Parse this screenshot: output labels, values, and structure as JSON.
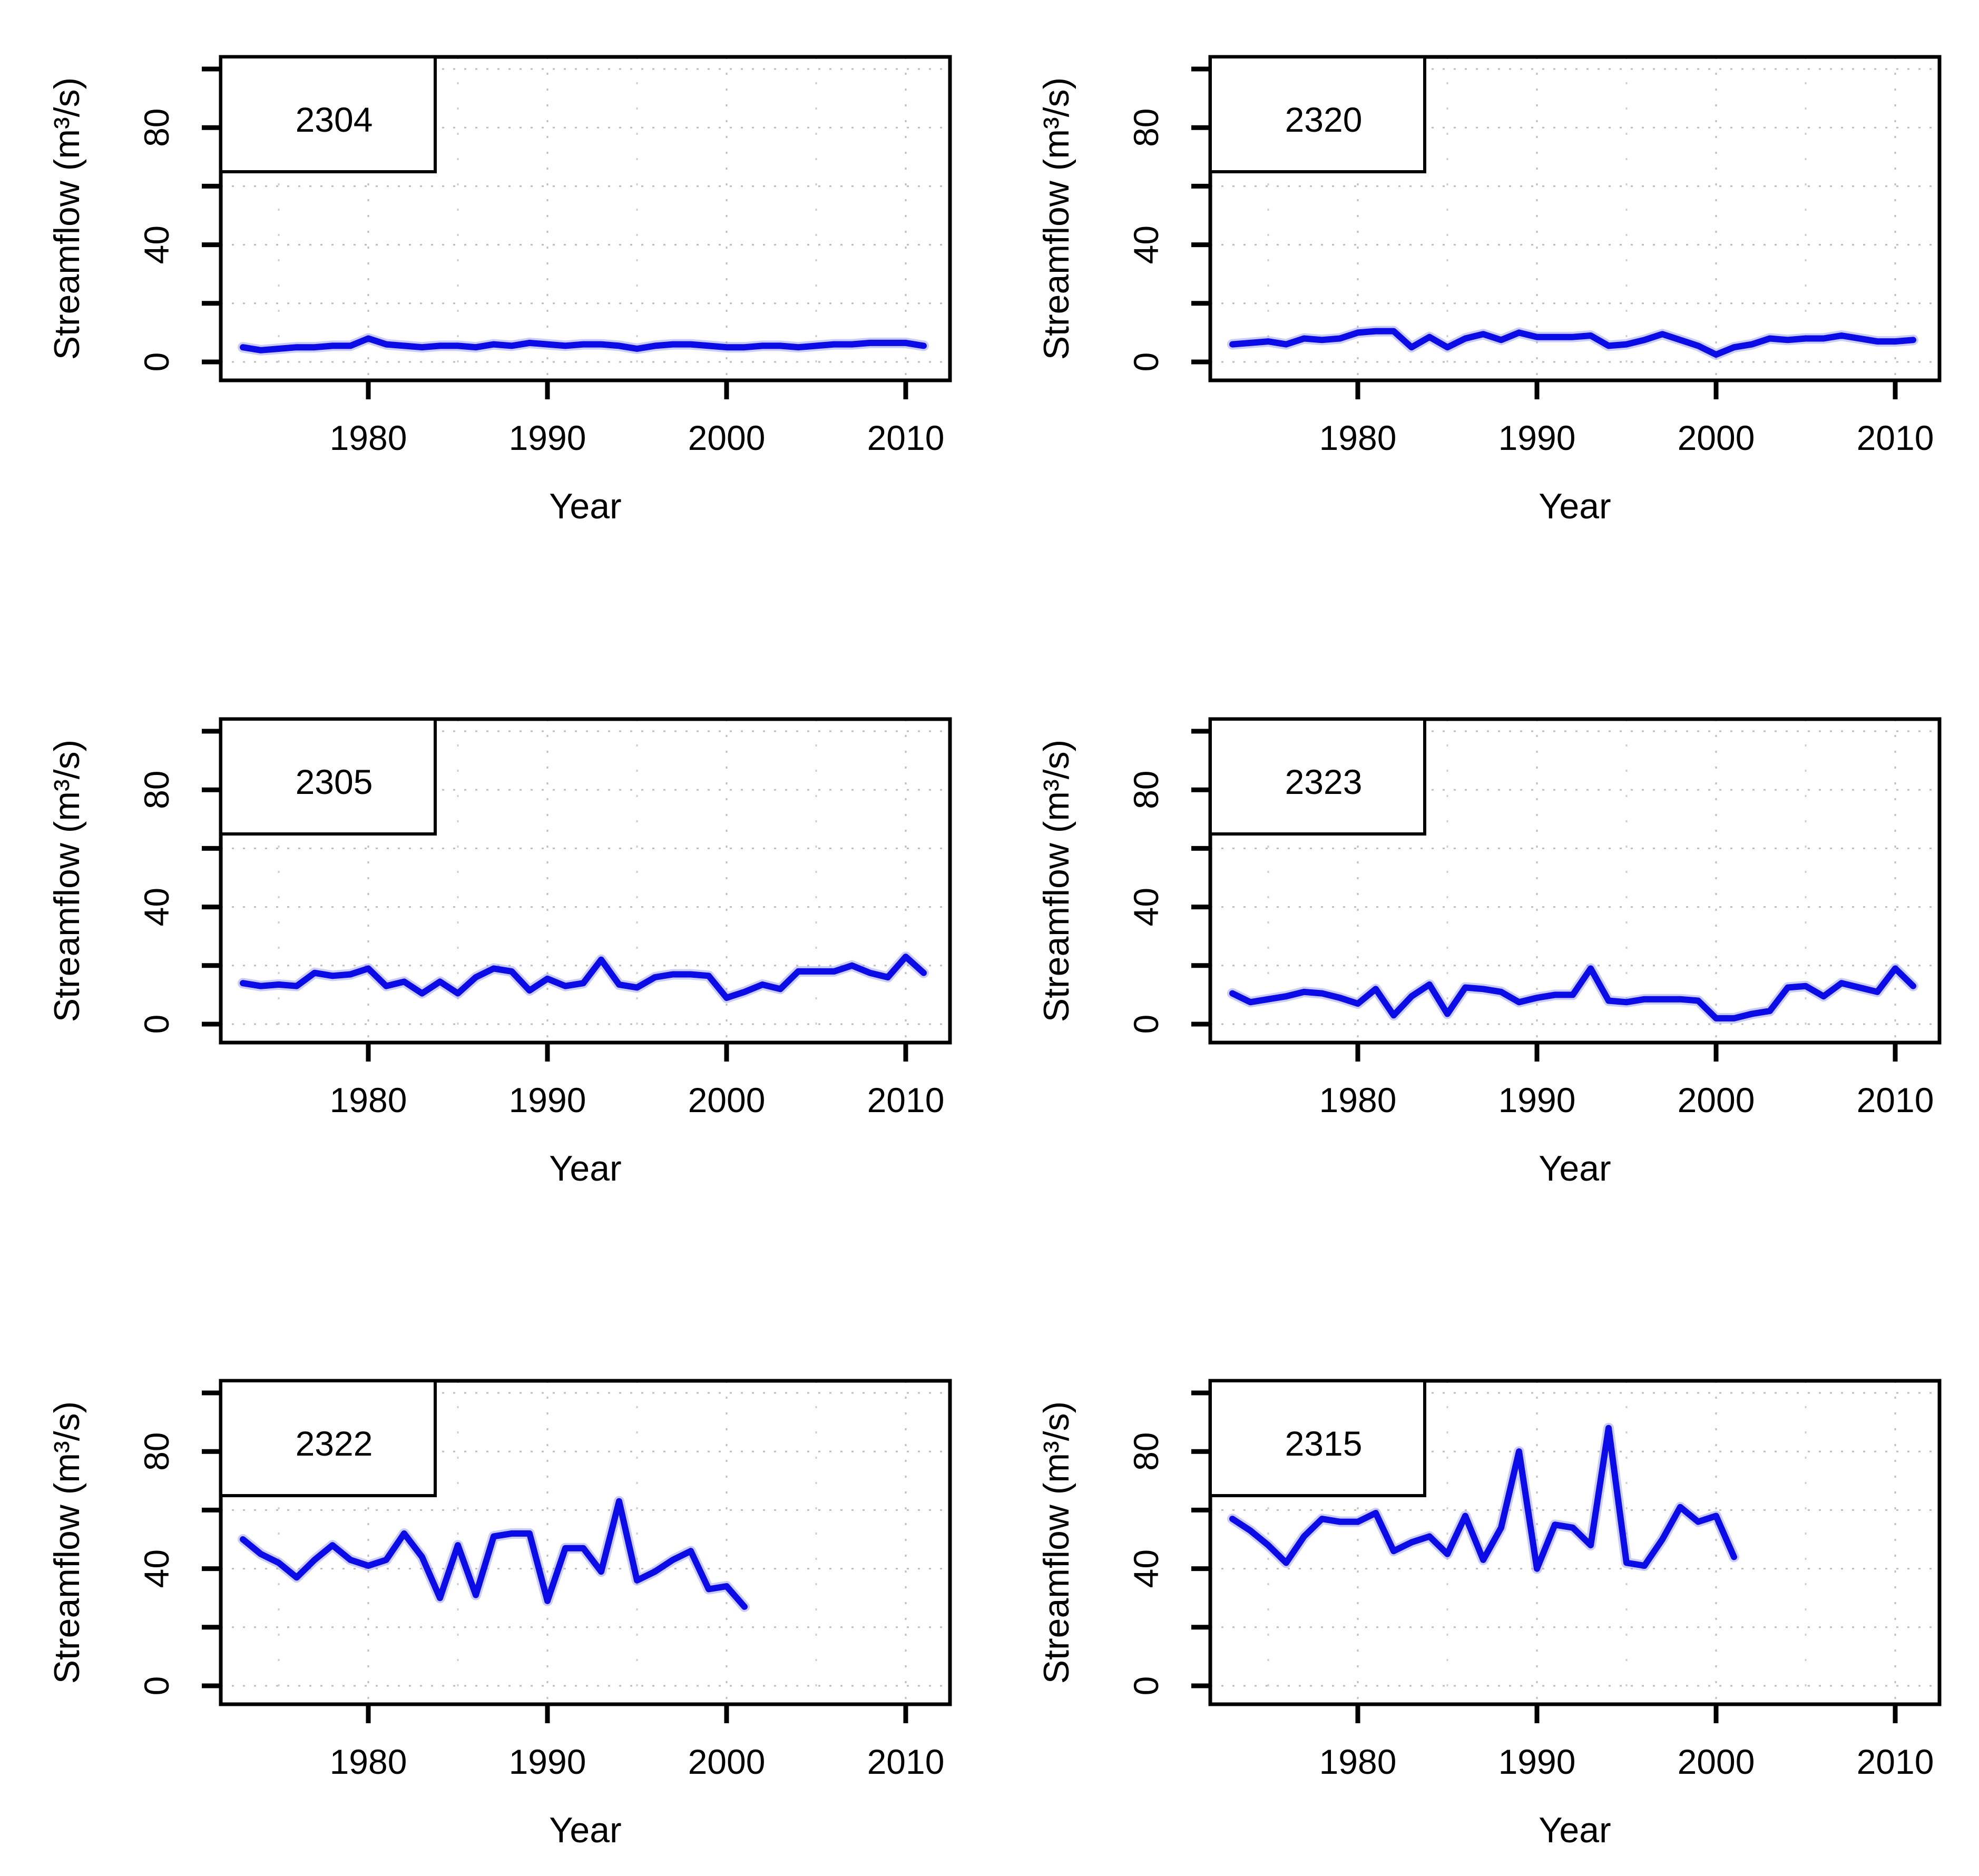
{
  "figure": {
    "description": "Grid of six annual streamflow time-series plots, one per gauge station",
    "grid": "2 columns x 3 rows",
    "background_color": "#ffffff"
  },
  "style": {
    "line_color": "#0b0be6",
    "line_halo_color": "#9a9af2",
    "grid_color": "#bdbdbd",
    "grid_minor_color": "#cdcdcd",
    "axis_color": "#000000",
    "text_color": "#000000",
    "legend_fill": "#ffffff"
  },
  "chart_data": [
    {
      "type": "line",
      "station": "2304",
      "title": "2304",
      "xlabel": "Year",
      "ylabel": "Streamflow (m³/s)",
      "ylim": [
        0,
        100
      ],
      "xlim": [
        1971.5,
        2012.5
      ],
      "xticks": [
        1980,
        1990,
        2000,
        2010
      ],
      "yticks_labeled": [
        0,
        40,
        80
      ],
      "yticks_all": [
        0,
        20,
        40,
        60,
        80,
        100
      ],
      "grid": true,
      "legend_position": "top-left",
      "x": [
        1973,
        1974,
        1975,
        1976,
        1977,
        1978,
        1979,
        1980,
        1981,
        1982,
        1983,
        1984,
        1985,
        1986,
        1987,
        1988,
        1989,
        1990,
        1991,
        1992,
        1993,
        1994,
        1995,
        1996,
        1997,
        1998,
        1999,
        2000,
        2001,
        2002,
        2003,
        2004,
        2005,
        2006,
        2007,
        2008,
        2009,
        2010,
        2011
      ],
      "values": [
        5,
        4,
        4.5,
        5,
        5,
        5.5,
        5.5,
        8,
        6,
        5.5,
        5,
        5.5,
        5.5,
        5,
        6,
        5.5,
        6.5,
        6,
        5.5,
        6,
        6,
        5.5,
        4.5,
        5.5,
        6,
        6,
        5.5,
        5,
        5,
        5.5,
        5.5,
        5,
        5.5,
        6,
        6,
        6.5,
        6.5,
        6.5,
        5.5
      ]
    },
    {
      "type": "line",
      "station": "2320",
      "title": "2320",
      "xlabel": "Year",
      "ylabel": "Streamflow (m³/s)",
      "ylim": [
        0,
        100
      ],
      "xlim": [
        1971.5,
        2012.5
      ],
      "xticks": [
        1980,
        1990,
        2000,
        2010
      ],
      "yticks_labeled": [
        0,
        40,
        80
      ],
      "yticks_all": [
        0,
        20,
        40,
        60,
        80,
        100
      ],
      "grid": true,
      "legend_position": "top-left",
      "x": [
        1973,
        1974,
        1975,
        1976,
        1977,
        1978,
        1979,
        1980,
        1981,
        1982,
        1983,
        1984,
        1985,
        1986,
        1987,
        1988,
        1989,
        1990,
        1991,
        1992,
        1993,
        1994,
        1995,
        1996,
        1997,
        1998,
        1999,
        2000,
        2001,
        2002,
        2003,
        2004,
        2005,
        2006,
        2007,
        2008,
        2009,
        2010,
        2011
      ],
      "values": [
        6,
        6.5,
        7,
        6,
        8,
        7.5,
        8,
        10,
        10.5,
        10.5,
        5,
        8.5,
        5,
        8,
        9.5,
        7.5,
        10,
        8.5,
        8.5,
        8.5,
        9,
        5.5,
        6,
        7.5,
        9.5,
        7.5,
        5.5,
        2.5,
        5,
        6,
        8,
        7.5,
        8,
        8,
        9,
        8,
        7,
        7,
        7.5
      ]
    },
    {
      "type": "line",
      "station": "2305",
      "title": "2305",
      "xlabel": "Year",
      "ylabel": "Streamflow (m³/s)",
      "ylim": [
        0,
        100
      ],
      "xlim": [
        1971.5,
        2012.5
      ],
      "xticks": [
        1980,
        1990,
        2000,
        2010
      ],
      "yticks_labeled": [
        0,
        40,
        80
      ],
      "yticks_all": [
        0,
        20,
        40,
        60,
        80,
        100
      ],
      "grid": true,
      "legend_position": "top-left",
      "x": [
        1973,
        1974,
        1975,
        1976,
        1977,
        1978,
        1979,
        1980,
        1981,
        1982,
        1983,
        1984,
        1985,
        1986,
        1987,
        1988,
        1989,
        1990,
        1991,
        1992,
        1993,
        1994,
        1995,
        1996,
        1997,
        1998,
        1999,
        2000,
        2001,
        2002,
        2003,
        2004,
        2005,
        2006,
        2007,
        2008,
        2009,
        2010,
        2011
      ],
      "values": [
        14,
        13,
        13.5,
        13,
        17.5,
        16.5,
        17,
        19,
        13,
        14.5,
        10.5,
        14.5,
        10.5,
        16,
        19,
        18,
        11.5,
        15.5,
        13,
        14,
        22,
        13.5,
        12.5,
        16,
        17,
        17,
        16.5,
        9,
        11,
        13.5,
        12,
        18,
        18,
        18,
        20,
        17.5,
        16,
        23,
        17.5
      ]
    },
    {
      "type": "line",
      "station": "2323",
      "title": "2323",
      "xlabel": "Year",
      "ylabel": "Streamflow (m³/s)",
      "ylim": [
        0,
        100
      ],
      "xlim": [
        1971.5,
        2012.5
      ],
      "xticks": [
        1980,
        1990,
        2000,
        2010
      ],
      "yticks_labeled": [
        0,
        40,
        80
      ],
      "yticks_all": [
        0,
        20,
        40,
        60,
        80,
        100
      ],
      "grid": true,
      "legend_position": "top-left",
      "x": [
        1973,
        1974,
        1975,
        1976,
        1977,
        1978,
        1979,
        1980,
        1981,
        1982,
        1983,
        1984,
        1985,
        1986,
        1987,
        1988,
        1989,
        1990,
        1991,
        1992,
        1993,
        1994,
        1995,
        1996,
        1997,
        1998,
        1999,
        2000,
        2001,
        2002,
        2003,
        2004,
        2005,
        2006,
        2007,
        2008,
        2009,
        2010,
        2011
      ],
      "values": [
        10.5,
        7.5,
        8.5,
        9.5,
        11,
        10.5,
        9,
        7,
        12,
        3,
        9.5,
        13.5,
        3.5,
        12.5,
        12,
        11,
        7.5,
        9,
        10,
        10,
        19,
        8,
        7.5,
        8.5,
        8.5,
        8.5,
        8,
        2,
        2,
        3.5,
        4.5,
        12.5,
        13,
        9.5,
        14,
        12.5,
        11,
        19,
        13
      ]
    },
    {
      "type": "line",
      "station": "2322",
      "title": "2322",
      "xlabel": "Year",
      "ylabel": "Streamflow (m³/s)",
      "ylim": [
        0,
        100
      ],
      "xlim": [
        1971.5,
        2012.5
      ],
      "xticks": [
        1980,
        1990,
        2000,
        2010
      ],
      "yticks_labeled": [
        0,
        40,
        80
      ],
      "yticks_all": [
        0,
        20,
        40,
        60,
        80,
        100
      ],
      "grid": true,
      "legend_position": "top-left",
      "x": [
        1973,
        1974,
        1975,
        1976,
        1977,
        1978,
        1979,
        1980,
        1981,
        1982,
        1983,
        1984,
        1985,
        1986,
        1987,
        1988,
        1989,
        1990,
        1991,
        1992,
        1993,
        1994,
        1995,
        1996,
        1997,
        1998,
        1999,
        2000,
        2001
      ],
      "values": [
        50,
        45,
        42,
        37,
        43,
        48,
        43,
        41,
        43,
        52,
        44,
        30,
        48,
        31,
        51,
        52,
        52,
        29,
        47,
        47,
        39,
        63,
        36,
        39,
        43,
        46,
        33,
        34,
        27
      ]
    },
    {
      "type": "line",
      "station": "2315",
      "title": "2315",
      "xlabel": "Year",
      "ylabel": "Streamflow (m³/s)",
      "ylim": [
        0,
        100
      ],
      "xlim": [
        1971.5,
        2012.5
      ],
      "xticks": [
        1980,
        1990,
        2000,
        2010
      ],
      "yticks_labeled": [
        0,
        40,
        80
      ],
      "yticks_all": [
        0,
        20,
        40,
        60,
        80,
        100
      ],
      "grid": true,
      "legend_position": "top-left",
      "x": [
        1973,
        1974,
        1975,
        1976,
        1977,
        1978,
        1979,
        1980,
        1981,
        1982,
        1983,
        1984,
        1985,
        1986,
        1987,
        1988,
        1989,
        1990,
        1991,
        1992,
        1993,
        1994,
        1995,
        1996,
        1997,
        1998,
        1999,
        2000,
        2001
      ],
      "values": [
        57,
        53,
        48,
        42,
        51,
        57,
        56,
        56,
        59,
        46,
        49,
        51,
        45,
        58,
        43,
        54,
        80,
        40,
        55,
        54,
        48,
        88,
        42,
        41,
        50,
        61,
        56,
        58,
        44
      ]
    }
  ]
}
